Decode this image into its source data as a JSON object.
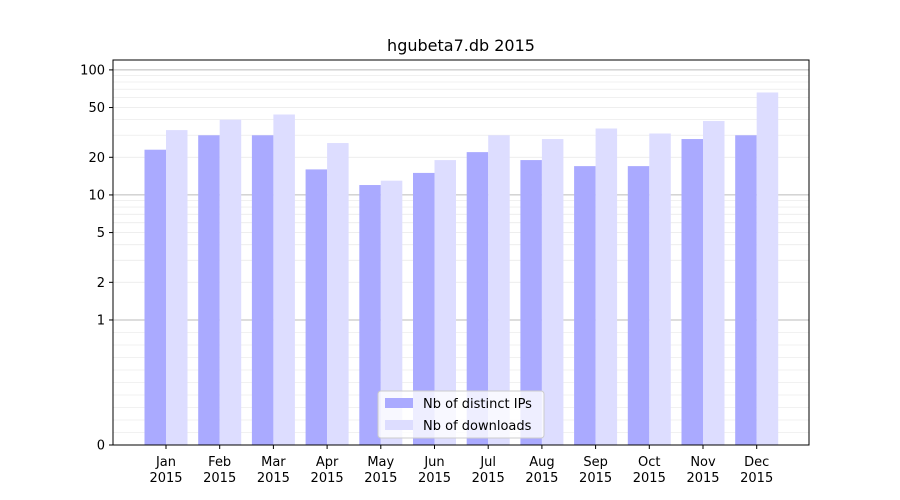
{
  "chart_data": {
    "type": "bar",
    "title": "hgubeta7.db 2015",
    "xlabel": "",
    "ylabel": "",
    "y_scale": "symlog",
    "ylim": [
      0,
      120
    ],
    "y_ticks": [
      0,
      1,
      2,
      5,
      10,
      20,
      50,
      100
    ],
    "y_tick_labels": [
      "0",
      "1",
      "2",
      "5",
      "10",
      "20",
      "50",
      "100"
    ],
    "categories": [
      {
        "month": "Jan",
        "year": "2015"
      },
      {
        "month": "Feb",
        "year": "2015"
      },
      {
        "month": "Mar",
        "year": "2015"
      },
      {
        "month": "Apr",
        "year": "2015"
      },
      {
        "month": "May",
        "year": "2015"
      },
      {
        "month": "Jun",
        "year": "2015"
      },
      {
        "month": "Jul",
        "year": "2015"
      },
      {
        "month": "Aug",
        "year": "2015"
      },
      {
        "month": "Sep",
        "year": "2015"
      },
      {
        "month": "Oct",
        "year": "2015"
      },
      {
        "month": "Nov",
        "year": "2015"
      },
      {
        "month": "Dec",
        "year": "2015"
      }
    ],
    "series": [
      {
        "name": "Nb of distinct IPs",
        "color": "#aaaaff",
        "values": [
          23,
          30,
          30,
          16,
          12,
          15,
          22,
          19,
          17,
          17,
          28,
          30
        ]
      },
      {
        "name": "Nb of downloads",
        "color": "#ddddff",
        "values": [
          33,
          40,
          44,
          26,
          13,
          19,
          30,
          28,
          34,
          31,
          39,
          66
        ]
      }
    ],
    "legend_position": "lower-center",
    "grid": true
  }
}
